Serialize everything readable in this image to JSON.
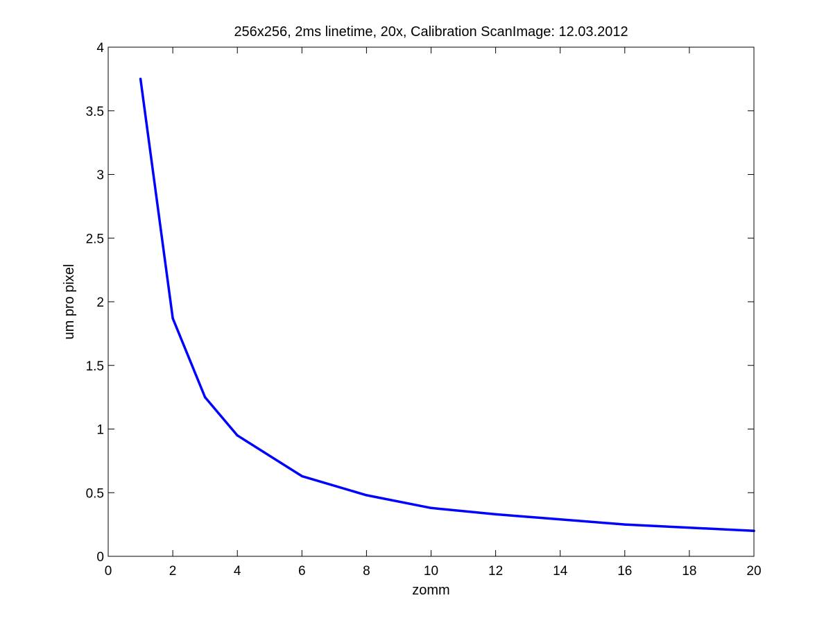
{
  "chart_data": {
    "type": "line",
    "title": "256x256, 2ms linetime, 20x, Calibration ScanImage: 12.03.2012",
    "xlabel": "zomm",
    "ylabel": "um pro pixel",
    "xlim": [
      0,
      20
    ],
    "ylim": [
      0,
      4
    ],
    "xticks": [
      0,
      2,
      4,
      6,
      8,
      10,
      12,
      14,
      16,
      18,
      20
    ],
    "yticks": [
      0,
      0.5,
      1,
      1.5,
      2,
      2.5,
      3,
      3.5,
      4
    ],
    "xtick_labels": [
      "0",
      "2",
      "4",
      "6",
      "8",
      "10",
      "12",
      "14",
      "16",
      "18",
      "20"
    ],
    "ytick_labels": [
      "0",
      "0.5",
      "1",
      "1.5",
      "2",
      "2.5",
      "3",
      "3.5",
      "4"
    ],
    "grid": false,
    "series": [
      {
        "color": "#0000ff",
        "x": [
          1,
          2,
          3,
          4,
          6,
          8,
          10,
          12,
          16,
          20
        ],
        "y": [
          3.75,
          1.87,
          1.25,
          0.95,
          0.63,
          0.48,
          0.38,
          0.33,
          0.25,
          0.2
        ]
      }
    ]
  }
}
